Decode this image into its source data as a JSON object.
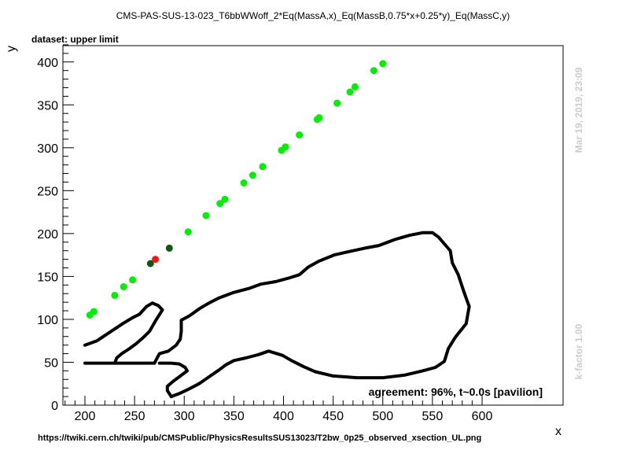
{
  "title": "CMS-PAS-SUS-13-023_T6bbWWoff_2*Eq(MassA,x)_Eq(MassB,0.75*x+0.25*y)_Eq(MassC,y)",
  "dataset_label": "dataset: upper limit",
  "agreement": "agreement: 96%, t~0.0s [pavilion]",
  "side_date": "Mar 19, 2019, 23:09",
  "side_kfactor": "k-factor 1.00",
  "url": "https://twiki.cern.ch/twiki/pub/CMSPublic/PhysicsResultsSUS13023/T2bw_0p25_observed_xsection_UL.png",
  "colors": {
    "light": "#00ee00",
    "dark": "#115511",
    "excluded": "#ff1111",
    "contour": "#000000"
  },
  "chart_data": {
    "type": "scatter",
    "xlabel": "x",
    "ylabel": "y",
    "xlim": [
      180,
      605
    ],
    "ylim": [
      0,
      420
    ],
    "xticks": [
      200,
      250,
      300,
      350,
      400,
      450,
      500,
      550,
      600
    ],
    "yticks": [
      0,
      50,
      100,
      150,
      200,
      250,
      300,
      350,
      400
    ],
    "points": [
      {
        "x": 205,
        "y": 105,
        "c": "light"
      },
      {
        "x": 209,
        "y": 109,
        "c": "light"
      },
      {
        "x": 230,
        "y": 128,
        "c": "light"
      },
      {
        "x": 239,
        "y": 138,
        "c": "light"
      },
      {
        "x": 248,
        "y": 146,
        "c": "light"
      },
      {
        "x": 266,
        "y": 165,
        "c": "dark"
      },
      {
        "x": 271,
        "y": 170,
        "c": "excluded"
      },
      {
        "x": 285,
        "y": 183,
        "c": "dark"
      },
      {
        "x": 304,
        "y": 202,
        "c": "light"
      },
      {
        "x": 322,
        "y": 221,
        "c": "light"
      },
      {
        "x": 336,
        "y": 235,
        "c": "light"
      },
      {
        "x": 341,
        "y": 240,
        "c": "light"
      },
      {
        "x": 360,
        "y": 259,
        "c": "light"
      },
      {
        "x": 369,
        "y": 268,
        "c": "light"
      },
      {
        "x": 379,
        "y": 278,
        "c": "light"
      },
      {
        "x": 398,
        "y": 297,
        "c": "light"
      },
      {
        "x": 402,
        "y": 301,
        "c": "light"
      },
      {
        "x": 416,
        "y": 315,
        "c": "light"
      },
      {
        "x": 434,
        "y": 333,
        "c": "light"
      },
      {
        "x": 436,
        "y": 335,
        "c": "light"
      },
      {
        "x": 454,
        "y": 352,
        "c": "light"
      },
      {
        "x": 467,
        "y": 365,
        "c": "light"
      },
      {
        "x": 472,
        "y": 371,
        "c": "light"
      },
      {
        "x": 491,
        "y": 390,
        "c": "light"
      },
      {
        "x": 500,
        "y": 398,
        "c": "light"
      }
    ],
    "contours": [
      [
        [
          200,
          70
        ],
        [
          212,
          75
        ],
        [
          225,
          85
        ],
        [
          238,
          95
        ],
        [
          248,
          102
        ],
        [
          255,
          106
        ],
        [
          262,
          115
        ],
        [
          268,
          119
        ],
        [
          274,
          116
        ],
        [
          278,
          111
        ],
        [
          271,
          98
        ],
        [
          265,
          86
        ],
        [
          258,
          78
        ],
        [
          252,
          72
        ],
        [
          245,
          66
        ],
        [
          237,
          60
        ],
        [
          232,
          55
        ],
        [
          230,
          49
        ],
        [
          200,
          49
        ]
      ],
      [
        [
          230,
          49
        ],
        [
          264,
          49
        ],
        [
          270,
          49
        ]
      ],
      [
        [
          270,
          49
        ],
        [
          275,
          60
        ],
        [
          284,
          63
        ],
        [
          292,
          70
        ],
        [
          296,
          77
        ],
        [
          297,
          86
        ],
        [
          297,
          99
        ],
        [
          305,
          104
        ],
        [
          316,
          113
        ],
        [
          325,
          119
        ],
        [
          335,
          125
        ],
        [
          349,
          131
        ],
        [
          365,
          136
        ],
        [
          377,
          141
        ],
        [
          392,
          144
        ],
        [
          405,
          148
        ],
        [
          416,
          152
        ],
        [
          425,
          161
        ],
        [
          436,
          168
        ],
        [
          451,
          175
        ],
        [
          466,
          179
        ],
        [
          482,
          183
        ],
        [
          496,
          186
        ],
        [
          512,
          193
        ],
        [
          527,
          198
        ],
        [
          540,
          201
        ],
        [
          550,
          201
        ],
        [
          556,
          196
        ],
        [
          562,
          188
        ],
        [
          568,
          180
        ],
        [
          570,
          166
        ],
        [
          576,
          152
        ],
        [
          582,
          131
        ],
        [
          587,
          115
        ],
        [
          584,
          95
        ],
        [
          573,
          79
        ],
        [
          566,
          66
        ],
        [
          562,
          51
        ],
        [
          553,
          44
        ],
        [
          540,
          40
        ],
        [
          522,
          35
        ],
        [
          500,
          32
        ],
        [
          474,
          32
        ],
        [
          450,
          34
        ],
        [
          432,
          39
        ],
        [
          420,
          45
        ],
        [
          408,
          52
        ],
        [
          399,
          58
        ],
        [
          385,
          63
        ],
        [
          375,
          59
        ],
        [
          362,
          55
        ],
        [
          350,
          52
        ],
        [
          342,
          47
        ],
        [
          335,
          41
        ],
        [
          325,
          33
        ],
        [
          315,
          25
        ],
        [
          305,
          19
        ],
        [
          296,
          14
        ],
        [
          287,
          10
        ]
      ],
      [
        [
          287,
          10
        ],
        [
          283,
          17
        ],
        [
          283,
          22
        ],
        [
          289,
          28
        ],
        [
          295,
          33
        ],
        [
          303,
          40
        ],
        [
          301,
          44
        ],
        [
          295,
          48
        ],
        [
          287,
          49
        ],
        [
          275,
          49
        ]
      ]
    ]
  }
}
